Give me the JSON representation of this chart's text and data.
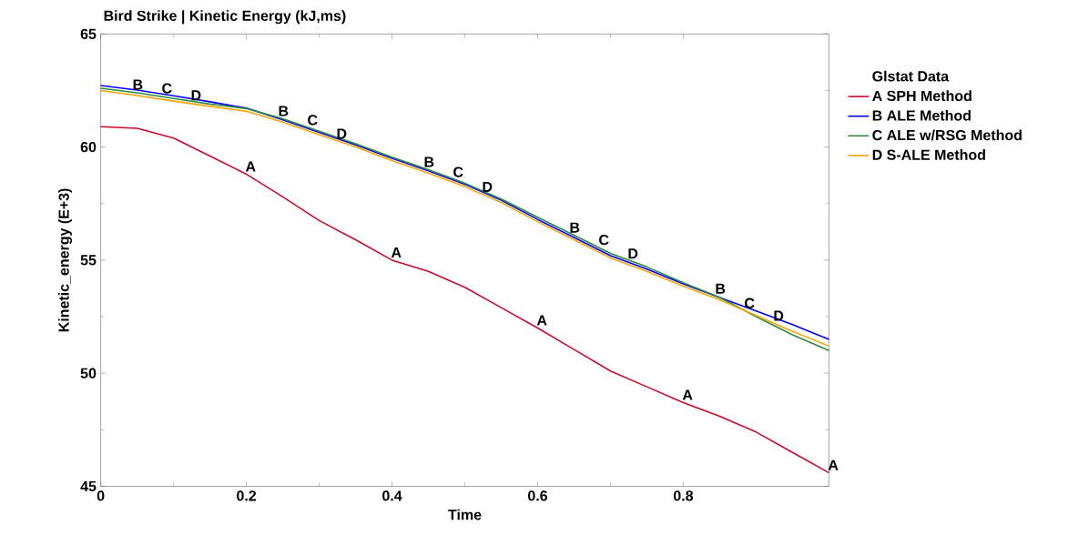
{
  "chart_data": {
    "type": "line",
    "title": "Bird Strike | Kinetic Energy (kJ,ms)",
    "xlabel": "Time",
    "ylabel": "Kinetic_energy (E+3)",
    "legend_title": "Glstat Data",
    "legend": "right",
    "x": [
      0,
      0.05,
      0.1,
      0.15,
      0.2,
      0.25,
      0.3,
      0.35,
      0.4,
      0.45,
      0.5,
      0.55,
      0.6,
      0.65,
      0.7,
      0.75,
      0.8,
      0.85,
      0.9,
      0.95,
      1.0
    ],
    "xlim": [
      0,
      1
    ],
    "xticks": [
      0,
      0.2,
      0.4,
      0.6,
      0.8
    ],
    "ylim": [
      45,
      65
    ],
    "yticks": [
      45,
      50,
      55,
      60,
      65
    ],
    "series": [
      {
        "name": "A SPH Method",
        "color": "#cc0a2a",
        "values": [
          60.9,
          60.83,
          60.4,
          59.6,
          58.8,
          57.8,
          56.75,
          55.9,
          55.0,
          54.5,
          53.8,
          52.9,
          52.0,
          51.05,
          50.1,
          49.4,
          48.7,
          48.1,
          47.4,
          46.5,
          45.6
        ]
      },
      {
        "name": "B ALE Method",
        "color": "#0000ff",
        "values": [
          62.72,
          62.52,
          62.27,
          62.0,
          61.72,
          61.2,
          60.65,
          60.1,
          59.5,
          58.95,
          58.35,
          57.65,
          56.8,
          56.0,
          55.2,
          54.6,
          53.95,
          53.35,
          52.75,
          52.15,
          51.5
        ]
      },
      {
        "name": "C ALE w/RSG Method",
        "color": "#2e8b3e",
        "values": [
          62.6,
          62.4,
          62.15,
          61.9,
          61.7,
          61.25,
          60.7,
          60.15,
          59.55,
          59.0,
          58.4,
          57.7,
          56.9,
          56.1,
          55.3,
          54.7,
          54.0,
          53.35,
          52.5,
          51.7,
          51.0
        ]
      },
      {
        "name": "D S-ALE Method",
        "color": "#ffa500",
        "values": [
          62.5,
          62.28,
          62.03,
          61.8,
          61.58,
          61.1,
          60.55,
          60.0,
          59.4,
          58.85,
          58.25,
          57.55,
          56.7,
          55.9,
          55.1,
          54.5,
          53.85,
          53.25,
          52.55,
          51.85,
          51.2
        ]
      }
    ],
    "annotations": [
      {
        "text": "A",
        "x": 0.2,
        "y": 58.8
      },
      {
        "text": "A",
        "x": 0.4,
        "y": 55.0
      },
      {
        "text": "A",
        "x": 0.6,
        "y": 52.0
      },
      {
        "text": "A",
        "x": 0.8,
        "y": 48.7
      },
      {
        "text": "A",
        "x": 1.0,
        "y": 45.6
      },
      {
        "text": "B",
        "x": 0.045,
        "y": 62.42
      },
      {
        "text": "B",
        "x": 0.245,
        "y": 61.25
      },
      {
        "text": "B",
        "x": 0.445,
        "y": 59.0
      },
      {
        "text": "B",
        "x": 0.645,
        "y": 56.1
      },
      {
        "text": "B",
        "x": 0.845,
        "y": 53.4
      },
      {
        "text": "C",
        "x": 0.085,
        "y": 62.25
      },
      {
        "text": "C",
        "x": 0.285,
        "y": 60.85
      },
      {
        "text": "C",
        "x": 0.485,
        "y": 58.55
      },
      {
        "text": "C",
        "x": 0.685,
        "y": 55.55
      },
      {
        "text": "C",
        "x": 0.885,
        "y": 52.75
      },
      {
        "text": "D",
        "x": 0.125,
        "y": 61.95
      },
      {
        "text": "D",
        "x": 0.325,
        "y": 60.25
      },
      {
        "text": "D",
        "x": 0.525,
        "y": 57.9
      },
      {
        "text": "D",
        "x": 0.725,
        "y": 54.95
      },
      {
        "text": "D",
        "x": 0.925,
        "y": 52.2
      }
    ]
  }
}
